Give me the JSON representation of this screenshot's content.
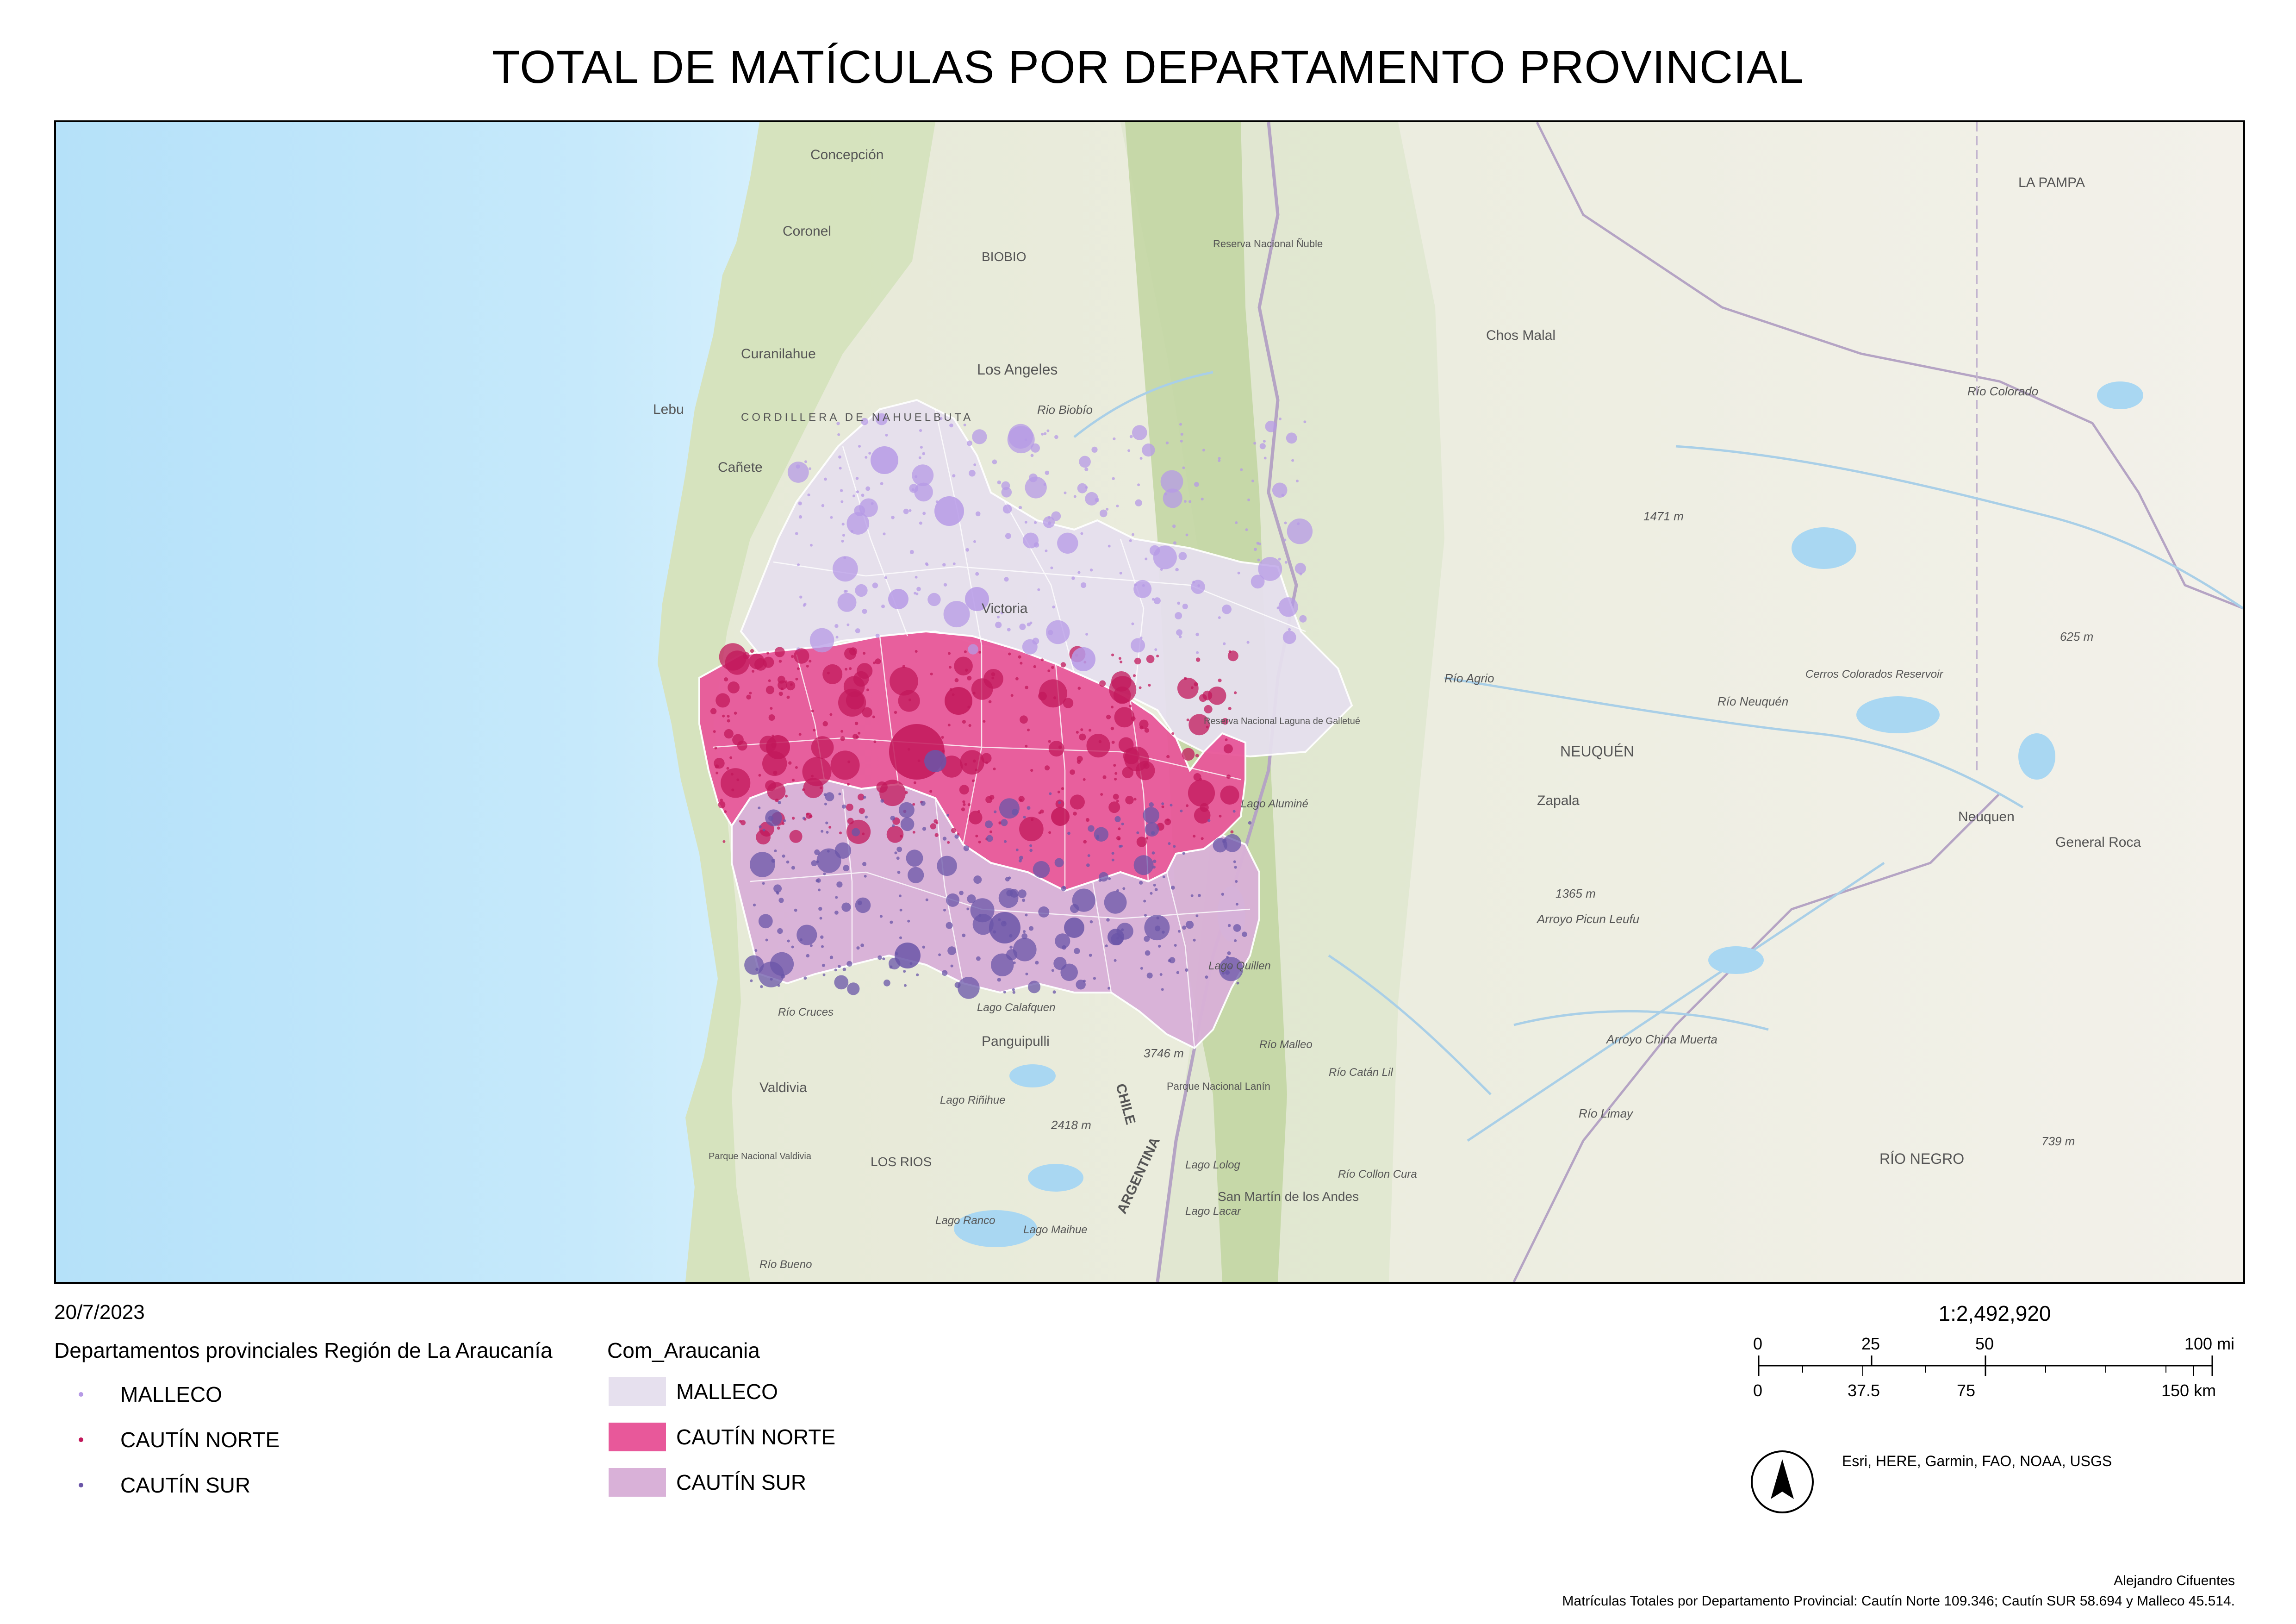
{
  "title": "TOTAL DE MATÍCULAS POR DEPARTAMENTO PROVINCIAL",
  "date": "20/7/2023",
  "legend": {
    "points_title": "Departamentos provinciales Región de La Araucanía",
    "polygons_title": "Com_Araucania",
    "points": [
      {
        "label": "MALLECO",
        "color": "#b69ae6"
      },
      {
        "label": "CAUTÍN NORTE",
        "color": "#c2185b"
      },
      {
        "label": "CAUTÍN SUR",
        "color": "#6a55a8"
      }
    ],
    "polygons": [
      {
        "label": "MALLECO",
        "color": "#e6e0ee"
      },
      {
        "label": "CAUTÍN NORTE",
        "color": "#e8589a"
      },
      {
        "label": "CAUTÍN SUR",
        "color": "#d9b1d8"
      }
    ]
  },
  "scale": {
    "ratio": "1:2,492,920",
    "miles": [
      "0",
      "25",
      "50",
      "100 mi"
    ],
    "km": [
      "0",
      "37.5",
      "75",
      "150 km"
    ]
  },
  "credits": "Esri, HERE, Garmin, FAO, NOAA, USGS",
  "author": "Alejandro Cifuentes",
  "note": "Matrículas Totales por Departamento Provincial: Cautín Norte 109.346; Cautín SUR 58.694 y Malleco 45.514.",
  "map_labels": {
    "concepcion": "Concepción",
    "coronel": "Coronel",
    "biobio": "BIOBIO",
    "reserva_nuble": "Reserva Nacional Ñuble",
    "curanilahue": "Curanilahue",
    "los_angeles": "Los Angeles",
    "cordillera": "CORDILLERA DE NAHUELBUTA",
    "lebu": "Lebu",
    "canete": "Cañete",
    "rio_biobio": "Rio Biobío",
    "chos_malal": "Chos Malal",
    "la_pampa": "LA PAMPA",
    "rio_colorado": "Río Colorado",
    "alt_1471": "1471 m",
    "alt_625": "625 m",
    "cerros_colorados": "Cerros Colorados Reservoir",
    "rio_agrio": "Río Agrio",
    "rio_neuquen": "Río Neuquén",
    "neuquen_prov": "NEUQUÉN",
    "zapala": "Zapala",
    "neuquen": "Neuquen",
    "general_roca": "General Roca",
    "alt_1365": "1365 m",
    "arroyo_picun": "Arroyo Picun Leufu",
    "arroyo_china": "Arroyo China Muerta",
    "rio_limay": "Río Limay",
    "rio_negro": "RÍO NEGRO",
    "alt_739": "739 m",
    "victoria": "Victoria",
    "lago_alumine": "Lago Aluminé",
    "lago_quillen": "Lago Quillen",
    "lago_calafquen": "Lago Calafquen",
    "panguipulli": "Panguipulli",
    "alt_3746": "3746 m",
    "chile": "CHILE",
    "argentina": "ARGENTINA",
    "parque_lanin": "Parque Nacional Lanín",
    "valdivia": "Valdivia",
    "lago_rinihue": "Lago Riñihue",
    "alt_2418": "2418 m",
    "parque_valdivia": "Parque Nacional Valdivia",
    "los_rios": "LOS RIOS",
    "lago_lolog": "Lago Lolog",
    "lago_lacar": "Lago Lacar",
    "san_martin": "San Martín de los Andes",
    "lago_ranco": "Lago Ranco",
    "lago_maihue": "Lago Maihue",
    "rio_bueno": "Río Bueno",
    "rio_cruces": "Río Cruces",
    "rio_malleo": "Río Malleo",
    "rio_catan_lil": "Río Catán Lil",
    "rio_collon_cura": "Río Collon Cura",
    "reserva_galletue": "Reserva Nacional Laguna de Galletué"
  }
}
